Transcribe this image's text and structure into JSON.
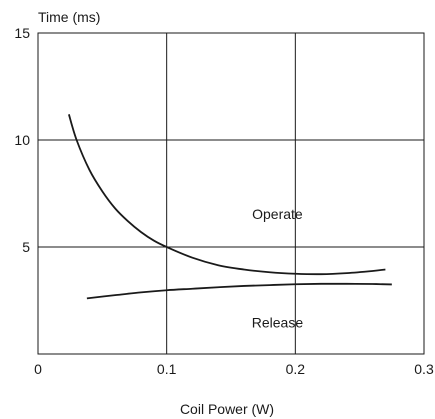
{
  "chart_data": {
    "type": "line",
    "xlabel": "Coil Power (W)",
    "ylabel": "Time (ms)",
    "xlim": [
      0,
      0.3
    ],
    "ylim": [
      0,
      15
    ],
    "x_ticks": [
      "0",
      "0.1",
      "0.2",
      "0.3"
    ],
    "y_ticks": [
      "5",
      "10",
      "15"
    ],
    "grid": true,
    "series": [
      {
        "name": "Operate",
        "x": [
          0.024,
          0.03,
          0.04,
          0.05,
          0.06,
          0.07,
          0.08,
          0.09,
          0.1,
          0.12,
          0.14,
          0.16,
          0.18,
          0.2,
          0.22,
          0.24,
          0.26,
          0.27
        ],
        "y": [
          11.2,
          10.0,
          8.6,
          7.6,
          6.8,
          6.2,
          5.7,
          5.3,
          5.0,
          4.5,
          4.15,
          3.95,
          3.82,
          3.75,
          3.73,
          3.78,
          3.88,
          3.95
        ]
      },
      {
        "name": "Release",
        "x": [
          0.038,
          0.06,
          0.08,
          0.1,
          0.12,
          0.14,
          0.16,
          0.18,
          0.2,
          0.22,
          0.24,
          0.26,
          0.275
        ],
        "y": [
          2.6,
          2.75,
          2.88,
          2.98,
          3.05,
          3.12,
          3.18,
          3.22,
          3.26,
          3.28,
          3.28,
          3.27,
          3.25
        ]
      }
    ],
    "annotations": [
      {
        "text": "Operate",
        "x": 0.155,
        "y": 6.3
      },
      {
        "text": "Release",
        "x": 0.155,
        "y": 1.25
      }
    ]
  }
}
